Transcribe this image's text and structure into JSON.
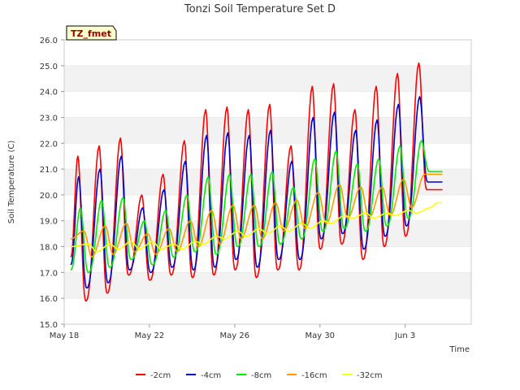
{
  "chart_data": {
    "type": "line",
    "title": "Tonzi Soil Temperature Set D",
    "xlabel": "Time",
    "ylabel": "Soil Temperature (C)",
    "badge": "TZ_fmet",
    "ylim": [
      15.0,
      26.0
    ],
    "xlim_days": [
      0,
      19.1
    ],
    "y_ticks": [
      "15.0",
      "16.0",
      "17.0",
      "18.0",
      "19.0",
      "20.0",
      "21.0",
      "22.0",
      "23.0",
      "24.0",
      "25.0",
      "26.0"
    ],
    "x_ticks": [
      {
        "day": 0,
        "label": "May 18"
      },
      {
        "day": 4,
        "label": "May 22"
      },
      {
        "day": 8,
        "label": "May 26"
      },
      {
        "day": 12,
        "label": "May 30"
      },
      {
        "day": 16,
        "label": "Jun 3"
      }
    ],
    "legend_position": "bottom",
    "grid": "horizontal bands",
    "colors": {
      "band": "#f2f2f2",
      "axis": "#cccccc",
      "badge_bg": "#ffffcc"
    },
    "day_start": 0.3,
    "day_end": 17.75,
    "series": [
      {
        "name": "-2cm",
        "color": "#ff0000",
        "phase": 0.64,
        "shape": 5,
        "start": 17.6,
        "days": [
          {
            "max": 21.5,
            "min": 16.2
          },
          {
            "max": 21.9,
            "min": 15.9
          },
          {
            "max": 22.2,
            "min": 16.2
          },
          {
            "max": 20.0,
            "min": 16.9
          },
          {
            "max": 20.8,
            "min": 16.7
          },
          {
            "max": 22.1,
            "min": 16.9
          },
          {
            "max": 23.3,
            "min": 16.8
          },
          {
            "max": 23.4,
            "min": 16.9
          },
          {
            "max": 23.3,
            "min": 17.1
          },
          {
            "max": 23.5,
            "min": 16.8
          },
          {
            "max": 21.9,
            "min": 17.1
          },
          {
            "max": 24.2,
            "min": 17.1
          },
          {
            "max": 24.3,
            "min": 17.9
          },
          {
            "max": 23.3,
            "min": 18.1
          },
          {
            "max": 24.2,
            "min": 17.5
          },
          {
            "max": 24.7,
            "min": 18.0
          },
          {
            "max": 25.1,
            "min": 18.4
          },
          {
            "max": 20.2,
            "min": 20.2
          }
        ]
      },
      {
        "name": "-4cm",
        "color": "#0000cc",
        "phase": 0.68,
        "shape": 3,
        "start": 17.3,
        "days": [
          {
            "max": 20.7,
            "min": 16.5
          },
          {
            "max": 21.0,
            "min": 16.4
          },
          {
            "max": 21.5,
            "min": 16.6
          },
          {
            "max": 19.5,
            "min": 17.1
          },
          {
            "max": 20.2,
            "min": 17.0
          },
          {
            "max": 21.3,
            "min": 17.2
          },
          {
            "max": 22.3,
            "min": 17.1
          },
          {
            "max": 22.4,
            "min": 17.2
          },
          {
            "max": 22.3,
            "min": 17.5
          },
          {
            "max": 22.5,
            "min": 17.2
          },
          {
            "max": 21.3,
            "min": 17.5
          },
          {
            "max": 23.0,
            "min": 17.5
          },
          {
            "max": 23.2,
            "min": 18.3
          },
          {
            "max": 22.5,
            "min": 18.5
          },
          {
            "max": 22.9,
            "min": 17.9
          },
          {
            "max": 23.5,
            "min": 18.4
          },
          {
            "max": 23.8,
            "min": 18.8
          },
          {
            "max": 20.5,
            "min": 20.5
          }
        ]
      },
      {
        "name": "-8cm",
        "color": "#00ee00",
        "phase": 0.76,
        "shape": 1.5,
        "start": 17.1,
        "days": [
          {
            "max": 19.5,
            "min": 17.0
          },
          {
            "max": 19.8,
            "min": 17.0
          },
          {
            "max": 19.9,
            "min": 17.2
          },
          {
            "max": 19.0,
            "min": 17.5
          },
          {
            "max": 19.4,
            "min": 17.3
          },
          {
            "max": 20.0,
            "min": 17.6
          },
          {
            "max": 20.7,
            "min": 17.8
          },
          {
            "max": 20.8,
            "min": 17.7
          },
          {
            "max": 20.8,
            "min": 18.0
          },
          {
            "max": 20.9,
            "min": 18.0
          },
          {
            "max": 20.3,
            "min": 18.1
          },
          {
            "max": 21.4,
            "min": 18.3
          },
          {
            "max": 21.7,
            "min": 18.6
          },
          {
            "max": 21.2,
            "min": 18.7
          },
          {
            "max": 21.4,
            "min": 18.6
          },
          {
            "max": 21.9,
            "min": 18.8
          },
          {
            "max": 22.1,
            "min": 19.1
          },
          {
            "max": 20.9,
            "min": 20.9
          }
        ]
      },
      {
        "name": "-16cm",
        "color": "#ff9900",
        "phase": 0.92,
        "shape": 1,
        "start": 18.3,
        "days": [
          {
            "max": 18.6,
            "min": 17.4
          },
          {
            "max": 18.8,
            "min": 17.6
          },
          {
            "max": 18.9,
            "min": 17.7
          },
          {
            "max": 18.5,
            "min": 17.8
          },
          {
            "max": 18.7,
            "min": 17.7
          },
          {
            "max": 19.0,
            "min": 17.8
          },
          {
            "max": 19.4,
            "min": 18.0
          },
          {
            "max": 19.6,
            "min": 18.1
          },
          {
            "max": 19.6,
            "min": 18.3
          },
          {
            "max": 19.7,
            "min": 18.3
          },
          {
            "max": 19.8,
            "min": 18.6
          },
          {
            "max": 20.1,
            "min": 18.7
          },
          {
            "max": 20.4,
            "min": 18.9
          },
          {
            "max": 20.3,
            "min": 19.1
          },
          {
            "max": 20.3,
            "min": 19.1
          },
          {
            "max": 20.6,
            "min": 19.2
          },
          {
            "max": 20.8,
            "min": 19.5
          },
          {
            "max": 20.8,
            "min": 20.8
          }
        ]
      },
      {
        "name": "-32cm",
        "color": "#ffff00",
        "phase": 1.15,
        "shape": 1,
        "start": 18.0,
        "days": [
          {
            "max": 18.1,
            "min": 17.7
          },
          {
            "max": 18.1,
            "min": 17.8
          },
          {
            "max": 18.2,
            "min": 17.9
          },
          {
            "max": 18.2,
            "min": 17.9
          },
          {
            "max": 18.1,
            "min": 17.9
          },
          {
            "max": 18.2,
            "min": 17.9
          },
          {
            "max": 18.4,
            "min": 18.1
          },
          {
            "max": 18.6,
            "min": 18.3
          },
          {
            "max": 18.7,
            "min": 18.4
          },
          {
            "max": 18.8,
            "min": 18.5
          },
          {
            "max": 18.9,
            "min": 18.6
          },
          {
            "max": 19.0,
            "min": 18.7
          },
          {
            "max": 19.2,
            "min": 18.9
          },
          {
            "max": 19.3,
            "min": 19.1
          },
          {
            "max": 19.3,
            "min": 19.1
          },
          {
            "max": 19.4,
            "min": 19.2
          },
          {
            "max": 19.5,
            "min": 19.3
          },
          {
            "max": 19.7,
            "min": 19.7
          }
        ]
      }
    ]
  }
}
